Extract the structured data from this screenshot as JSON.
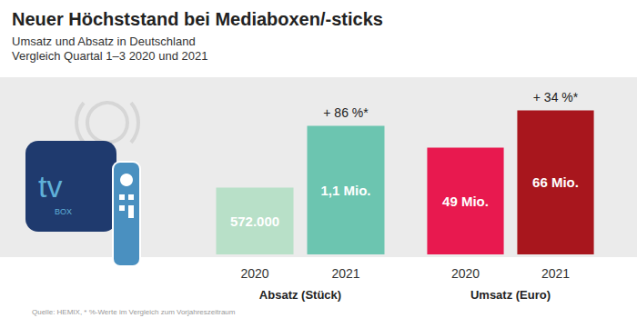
{
  "title": "Neuer Höchststand bei Mediaboxen/-sticks",
  "subtitle": [
    "Umsatz und Absatz in Deutschland",
    "Vergleich Quartal 1–3 2020 und 2021"
  ],
  "source": "Quelle: HEMIX, * %-Werte im Vergleich zum Vorjahreszeitraum",
  "icon": {
    "label": "tv",
    "sublabel": "BOX"
  },
  "chart_data": [
    {
      "type": "bar",
      "xlabel": "Absatz (Stück)",
      "categories": [
        "2020",
        "2021"
      ],
      "values": [
        572000,
        1100000
      ],
      "value_labels": [
        "572.000",
        "1,1 Mio."
      ],
      "colors": [
        "#b8e0c8",
        "#6cc5b0"
      ],
      "ylim": [
        0,
        1400000
      ],
      "grid": false,
      "tick_labels": "x",
      "data_labels": true,
      "annotations": [
        {
          "category": "2021",
          "text": "+ 86 %*"
        }
      ]
    },
    {
      "type": "bar",
      "xlabel": "Umsatz (Euro)",
      "categories": [
        "2020",
        "2021"
      ],
      "values": [
        49,
        66
      ],
      "value_labels": [
        "49 Mio.",
        "66 Mio."
      ],
      "colors": [
        "#e8194f",
        "#a8161d"
      ],
      "ylim": [
        0,
        75
      ],
      "grid": false,
      "tick_labels": "x",
      "data_labels": true,
      "annotations": [
        {
          "category": "2021",
          "text": "+ 34 %*"
        }
      ]
    }
  ]
}
